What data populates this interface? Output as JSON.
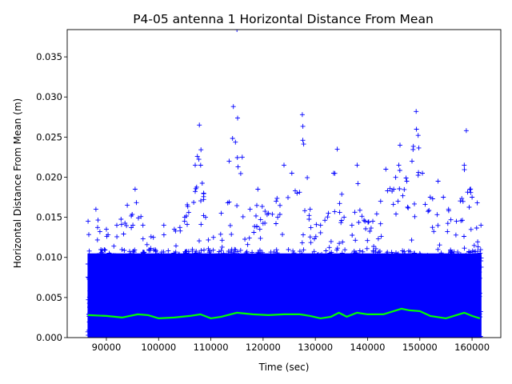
{
  "chart_data": {
    "type": "scatter",
    "title": "P4-05 antenna 1 Horizontal Distance From Mean",
    "xlabel": "Time (sec)",
    "ylabel": "Horizontal Distance From Mean (m)",
    "xlim": [
      82500,
      165500
    ],
    "ylim": [
      0.0,
      0.0384
    ],
    "x_ticks": [
      90000,
      100000,
      110000,
      120000,
      130000,
      140000,
      150000,
      160000
    ],
    "x_tick_labels": [
      "90000",
      "100000",
      "110000",
      "120000",
      "130000",
      "140000",
      "150000",
      "160000"
    ],
    "y_ticks": [
      0.0,
      0.005,
      0.01,
      0.015,
      0.02,
      0.025,
      0.03,
      0.035
    ],
    "y_tick_labels": [
      "0.000",
      "0.005",
      "0.010",
      "0.015",
      "0.020",
      "0.025",
      "0.030",
      "0.035"
    ],
    "grid": false,
    "legend": "none",
    "series": [
      {
        "marker": "+",
        "color": "#0000ff",
        "x_range": [
          86400,
          161800
        ],
        "dense_band": [
          0.0,
          0.011
        ],
        "envelope": [
          [
            86500,
            0.0145
          ],
          [
            88000,
            0.016
          ],
          [
            90000,
            0.0135
          ],
          [
            92000,
            0.014
          ],
          [
            94000,
            0.0165
          ],
          [
            95500,
            0.0185
          ],
          [
            97000,
            0.014
          ],
          [
            99000,
            0.0125
          ],
          [
            101000,
            0.014
          ],
          [
            103000,
            0.0135
          ],
          [
            105000,
            0.015
          ],
          [
            107000,
            0.0215
          ],
          [
            107800,
            0.0265
          ],
          [
            109000,
            0.015
          ],
          [
            110500,
            0.0125
          ],
          [
            112000,
            0.0155
          ],
          [
            113500,
            0.022
          ],
          [
            115000,
            0.0384
          ],
          [
            116000,
            0.0225
          ],
          [
            117500,
            0.016
          ],
          [
            119000,
            0.0185
          ],
          [
            121000,
            0.0155
          ],
          [
            122500,
            0.017
          ],
          [
            124000,
            0.0215
          ],
          [
            125500,
            0.0205
          ],
          [
            126500,
            0.018
          ],
          [
            127500,
            0.0278
          ],
          [
            129000,
            0.016
          ],
          [
            131000,
            0.014
          ],
          [
            132500,
            0.0155
          ],
          [
            133500,
            0.0205
          ],
          [
            134200,
            0.0235
          ],
          [
            135500,
            0.015
          ],
          [
            137000,
            0.014
          ],
          [
            138000,
            0.0215
          ],
          [
            139500,
            0.0145
          ],
          [
            141000,
            0.0145
          ],
          [
            142500,
            0.017
          ],
          [
            143500,
            0.021
          ],
          [
            145000,
            0.0185
          ],
          [
            146200,
            0.024
          ],
          [
            147500,
            0.0195
          ],
          [
            148500,
            0.022
          ],
          [
            149300,
            0.0282
          ],
          [
            150500,
            0.0205
          ],
          [
            152000,
            0.0175
          ],
          [
            153500,
            0.0195
          ],
          [
            154500,
            0.0175
          ],
          [
            155500,
            0.016
          ],
          [
            157000,
            0.0145
          ],
          [
            158500,
            0.0215
          ],
          [
            158900,
            0.0258
          ],
          [
            160000,
            0.0175
          ],
          [
            161000,
            0.0168
          ],
          [
            161700,
            0.014
          ]
        ]
      },
      {
        "marker": "line",
        "color": "#00ff00",
        "values": [
          [
            86500,
            0.0028
          ],
          [
            90000,
            0.0027
          ],
          [
            93000,
            0.0025
          ],
          [
            96000,
            0.0029
          ],
          [
            98000,
            0.0028
          ],
          [
            100000,
            0.0024
          ],
          [
            103000,
            0.0025
          ],
          [
            106000,
            0.0027
          ],
          [
            108000,
            0.0029
          ],
          [
            110000,
            0.0024
          ],
          [
            112000,
            0.0026
          ],
          [
            115000,
            0.0031
          ],
          [
            118000,
            0.0029
          ],
          [
            121000,
            0.0028
          ],
          [
            124000,
            0.0029
          ],
          [
            127000,
            0.0029
          ],
          [
            129000,
            0.0027
          ],
          [
            131000,
            0.0024
          ],
          [
            133000,
            0.0026
          ],
          [
            134500,
            0.0031
          ],
          [
            136000,
            0.0026
          ],
          [
            138000,
            0.0031
          ],
          [
            140000,
            0.0029
          ],
          [
            143000,
            0.0029
          ],
          [
            146500,
            0.0036
          ],
          [
            148000,
            0.0034
          ],
          [
            150000,
            0.0033
          ],
          [
            152000,
            0.0027
          ],
          [
            155000,
            0.0024
          ],
          [
            158500,
            0.0031
          ],
          [
            160000,
            0.0027
          ],
          [
            161500,
            0.0024
          ]
        ]
      }
    ]
  }
}
